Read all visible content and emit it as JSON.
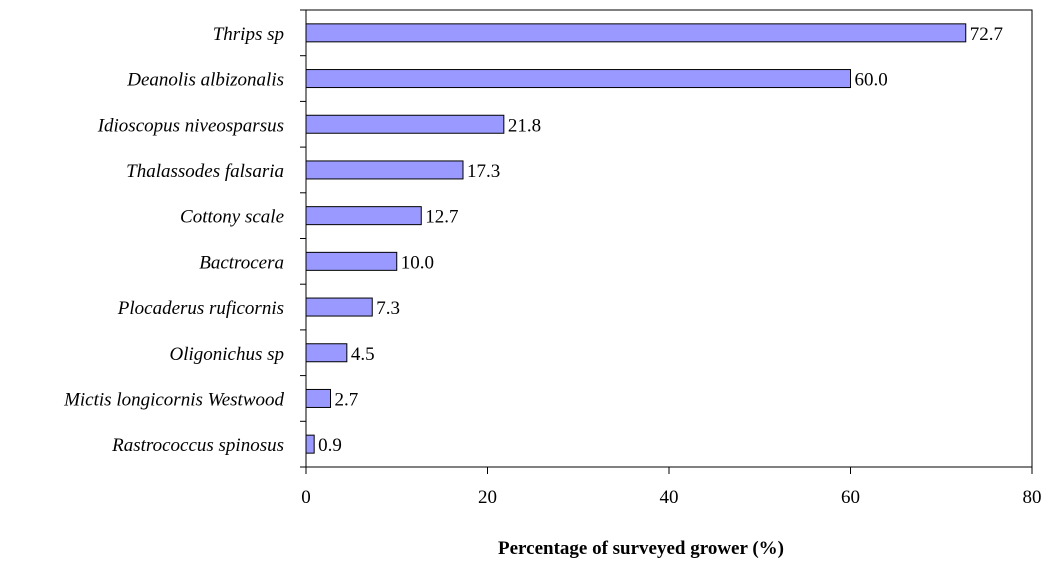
{
  "chart_data": {
    "type": "bar",
    "orientation": "horizontal",
    "categories": [
      "Thrips sp",
      "Deanolis albizonalis",
      "Idioscopus niveosparsus",
      "Thalassodes falsaria",
      "Cottony scale",
      "Bactrocera",
      "Plocaderus ruficornis",
      "Oligonichus sp",
      "Mictis longicornis Westwood",
      "Rastrococcus spinosus"
    ],
    "values": [
      72.7,
      60.0,
      21.8,
      17.3,
      12.7,
      10.0,
      7.3,
      4.5,
      2.7,
      0.9
    ],
    "value_labels": [
      "72.7",
      "60.0",
      "21.8",
      "17.3",
      "12.7",
      "10.0",
      "7.3",
      "4.5",
      "2.7",
      "0.9"
    ],
    "xlabel": "Percentage of surveyed grower (%)",
    "ylabel": "",
    "xlim": [
      0,
      80
    ],
    "xticks": [
      0,
      20,
      40,
      60,
      80
    ],
    "grid": false,
    "legend": "none",
    "bar_color": "#9999ff"
  }
}
